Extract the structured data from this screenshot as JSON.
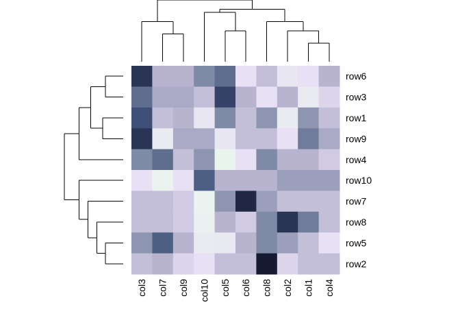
{
  "chart_data": {
    "type": "heatmap",
    "title": "",
    "xlabel": "",
    "ylabel": "",
    "columns": [
      "col3",
      "col7",
      "col9",
      "col10",
      "col5",
      "col6",
      "col8",
      "col2",
      "col1",
      "col4"
    ],
    "rows": [
      "row6",
      "row3",
      "row1",
      "row9",
      "row4",
      "row10",
      "row7",
      "row8",
      "row5",
      "row2"
    ],
    "colormap_low_to_high": [
      "#eaf6ee",
      "#e8e0f4",
      "#b8b4d0",
      "#7f8aa6",
      "#3e5078",
      "#161a33"
    ],
    "values": [
      [
        0.9,
        0.4,
        0.4,
        0.6,
        0.7,
        0.2,
        0.35,
        0.15,
        0.2,
        0.4
      ],
      [
        0.7,
        0.45,
        0.45,
        0.35,
        0.85,
        0.4,
        0.2,
        0.4,
        0.1,
        0.25
      ],
      [
        0.8,
        0.35,
        0.4,
        0.15,
        0.6,
        0.35,
        0.55,
        0.1,
        0.55,
        0.35
      ],
      [
        0.9,
        0.1,
        0.45,
        0.45,
        0.15,
        0.35,
        0.35,
        0.2,
        0.65,
        0.45
      ],
      [
        0.6,
        0.7,
        0.35,
        0.55,
        0.02,
        0.2,
        0.6,
        0.4,
        0.4,
        0.3
      ],
      [
        0.2,
        0.03,
        0.2,
        0.75,
        0.4,
        0.4,
        0.4,
        0.5,
        0.5,
        0.5
      ],
      [
        0.35,
        0.35,
        0.3,
        0.03,
        0.55,
        0.95,
        0.5,
        0.35,
        0.35,
        0.35
      ],
      [
        0.35,
        0.35,
        0.3,
        0.05,
        0.4,
        0.3,
        0.6,
        0.9,
        0.65,
        0.35
      ],
      [
        0.55,
        0.75,
        0.4,
        0.1,
        0.12,
        0.4,
        0.6,
        0.5,
        0.35,
        0.2
      ],
      [
        0.35,
        0.4,
        0.25,
        0.2,
        0.35,
        0.35,
        1.0,
        0.25,
        0.35,
        0.35
      ]
    ],
    "row_dendrogram": [
      [
        0,
        1
      ],
      [
        2,
        3
      ],
      [
        10,
        11
      ],
      [
        12,
        4
      ],
      [
        8,
        9
      ],
      [
        7,
        14
      ],
      [
        6,
        15
      ],
      [
        5,
        16
      ],
      [
        13,
        17
      ]
    ],
    "col_dendrogram": [
      [
        1,
        2
      ],
      [
        0,
        10
      ],
      [
        4,
        5
      ],
      [
        8,
        9
      ],
      [
        7,
        13
      ],
      [
        6,
        14
      ],
      [
        3,
        12
      ],
      [
        16,
        15
      ],
      [
        11,
        17
      ]
    ],
    "row_merge_heights": [
      0.3,
      0.35,
      0.55,
      0.75,
      0.3,
      0.45,
      0.6,
      0.75,
      1.0
    ],
    "col_merge_heights": [
      0.45,
      0.65,
      0.5,
      0.3,
      0.5,
      0.65,
      0.8,
      0.85,
      1.0
    ],
    "grid": false,
    "legend": "none"
  }
}
